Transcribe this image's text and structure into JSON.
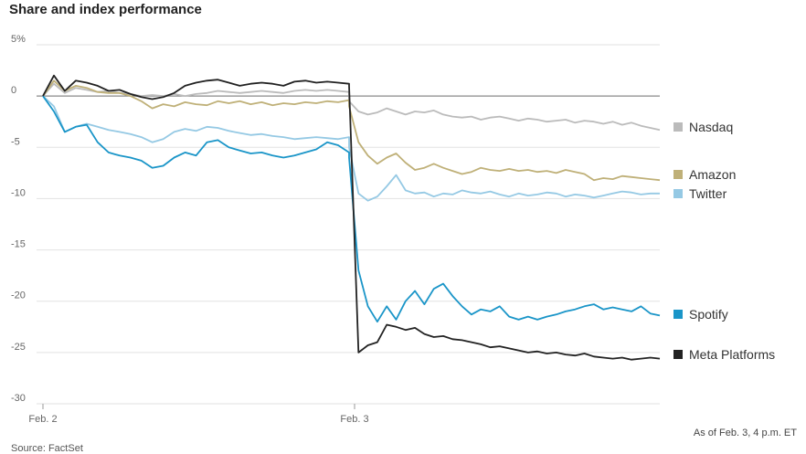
{
  "header": {
    "title": "Share and index performance"
  },
  "footer": {
    "note": "As of Feb. 3, 4 p.m. ET",
    "source": "Source: FactSet"
  },
  "chart_data": {
    "type": "line",
    "title": "Share and index performance",
    "xlabel": "",
    "ylabel": "",
    "ylim": [
      -30,
      5
    ],
    "y_ticks": [
      {
        "value": 5,
        "label": "5%"
      },
      {
        "value": 0,
        "label": "0"
      },
      {
        "value": -5,
        "label": "-5"
      },
      {
        "value": -10,
        "label": "-10"
      },
      {
        "value": -15,
        "label": "-15"
      },
      {
        "value": -20,
        "label": "-20"
      },
      {
        "value": -25,
        "label": "-25"
      },
      {
        "value": -30,
        "label": "-30"
      }
    ],
    "x_ticks": [
      {
        "label": "Feb. 2",
        "day": 0
      },
      {
        "label": "Feb. 3",
        "day": 1
      }
    ],
    "grid": true,
    "legend": "right",
    "series": [
      {
        "name": "Nasdaq",
        "color": "#bbbbbb",
        "day1": [
          0.0,
          1.2,
          0.3,
          0.8,
          0.6,
          0.4,
          0.5,
          0.3,
          0.2,
          0.0,
          0.1,
          0.0,
          0.2,
          0.0,
          0.2,
          0.3,
          0.5,
          0.4,
          0.3,
          0.4,
          0.5,
          0.4,
          0.3,
          0.5,
          0.6,
          0.5,
          0.6,
          0.5,
          0.4
        ],
        "day2": [
          -0.5,
          -1.5,
          -1.8,
          -1.6,
          -1.2,
          -1.5,
          -1.8,
          -1.5,
          -1.6,
          -1.4,
          -1.8,
          -2.0,
          -2.1,
          -2.0,
          -2.3,
          -2.1,
          -2.0,
          -2.2,
          -2.4,
          -2.2,
          -2.3,
          -2.5,
          -2.4,
          -2.3,
          -2.6,
          -2.4,
          -2.5,
          -2.7,
          -2.5,
          -2.8,
          -2.6,
          -2.9,
          -3.1,
          -3.3
        ]
      },
      {
        "name": "Amazon",
        "color": "#bfb078",
        "day1": [
          0.0,
          1.5,
          0.5,
          1.0,
          0.8,
          0.4,
          0.3,
          0.3,
          0.0,
          -0.5,
          -1.2,
          -0.8,
          -1.0,
          -0.6,
          -0.8,
          -0.9,
          -0.5,
          -0.7,
          -0.5,
          -0.8,
          -0.6,
          -0.9,
          -0.7,
          -0.8,
          -0.6,
          -0.7,
          -0.5,
          -0.6,
          -0.4
        ],
        "day2": [
          -1.0,
          -4.5,
          -5.8,
          -6.6,
          -6.0,
          -5.6,
          -6.5,
          -7.2,
          -7.0,
          -6.6,
          -7.0,
          -7.3,
          -7.6,
          -7.4,
          -7.0,
          -7.2,
          -7.3,
          -7.1,
          -7.3,
          -7.2,
          -7.4,
          -7.3,
          -7.5,
          -7.2,
          -7.4,
          -7.6,
          -8.2,
          -8.0,
          -8.1,
          -7.8,
          -7.9,
          -8.0,
          -8.1,
          -8.2
        ]
      },
      {
        "name": "Twitter",
        "color": "#95c9e4",
        "day1": [
          0.0,
          -1.0,
          -3.5,
          -3.0,
          -2.7,
          -3.0,
          -3.3,
          -3.5,
          -3.7,
          -4.0,
          -4.5,
          -4.2,
          -3.5,
          -3.2,
          -3.4,
          -3.0,
          -3.1,
          -3.4,
          -3.6,
          -3.8,
          -3.7,
          -3.9,
          -4.0,
          -4.2,
          -4.1,
          -4.0,
          -4.1,
          -4.2,
          -4.0
        ],
        "day2": [
          -5.0,
          -9.5,
          -10.2,
          -9.8,
          -8.8,
          -7.7,
          -9.2,
          -9.5,
          -9.4,
          -9.8,
          -9.5,
          -9.6,
          -9.2,
          -9.4,
          -9.5,
          -9.3,
          -9.6,
          -9.8,
          -9.5,
          -9.7,
          -9.6,
          -9.4,
          -9.5,
          -9.8,
          -9.6,
          -9.7,
          -9.9,
          -9.7,
          -9.5,
          -9.3,
          -9.4,
          -9.6,
          -9.5,
          -9.5
        ]
      },
      {
        "name": "Spotify",
        "color": "#1a95c8",
        "day1": [
          0.0,
          -1.5,
          -3.5,
          -3.0,
          -2.8,
          -4.5,
          -5.5,
          -5.8,
          -6.0,
          -6.3,
          -7.0,
          -6.8,
          -6.0,
          -5.5,
          -5.8,
          -4.5,
          -4.3,
          -5.0,
          -5.3,
          -5.6,
          -5.5,
          -5.8,
          -6.0,
          -5.8,
          -5.5,
          -5.2,
          -4.5,
          -4.8,
          -5.5
        ],
        "day2": [
          -6.0,
          -17.0,
          -20.5,
          -22.0,
          -20.5,
          -21.8,
          -20.0,
          -19.0,
          -20.3,
          -18.8,
          -18.3,
          -19.5,
          -20.5,
          -21.3,
          -20.8,
          -21.0,
          -20.5,
          -21.5,
          -21.8,
          -21.5,
          -21.8,
          -21.5,
          -21.3,
          -21.0,
          -20.8,
          -20.5,
          -20.3,
          -20.8,
          -20.6,
          -20.8,
          -21.0,
          -20.5,
          -21.2,
          -21.4
        ]
      },
      {
        "name": "Meta Platforms",
        "color": "#222222",
        "day1": [
          0.0,
          2.0,
          0.5,
          1.5,
          1.3,
          1.0,
          0.5,
          0.6,
          0.2,
          -0.1,
          -0.3,
          -0.1,
          0.3,
          1.0,
          1.3,
          1.5,
          1.6,
          1.3,
          1.0,
          1.2,
          1.3,
          1.2,
          1.0,
          1.4,
          1.5,
          1.3,
          1.4,
          1.3,
          1.2
        ],
        "day2": [
          1.0,
          -25.0,
          -24.3,
          -24.0,
          -22.3,
          -22.5,
          -22.8,
          -22.6,
          -23.2,
          -23.5,
          -23.4,
          -23.7,
          -23.8,
          -24.0,
          -24.2,
          -24.5,
          -24.4,
          -24.6,
          -24.8,
          -25.0,
          -24.9,
          -25.1,
          -25.0,
          -25.2,
          -25.3,
          -25.1,
          -25.4,
          -25.5,
          -25.6,
          -25.5,
          -25.7,
          -25.6,
          -25.5,
          -25.6
        ]
      }
    ]
  }
}
